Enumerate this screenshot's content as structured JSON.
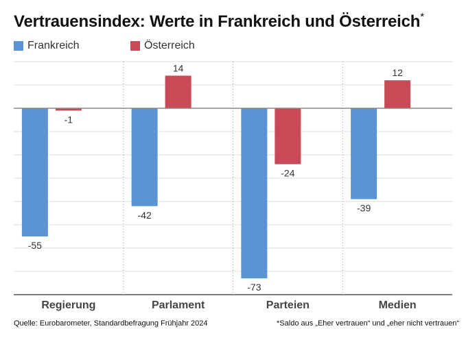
{
  "chart_data": {
    "type": "bar",
    "title": "Vertrauensindex: Werte in Frankreich und Österreich",
    "title_marker": "*",
    "categories": [
      "Regierung",
      "Parlament",
      "Parteien",
      "Medien"
    ],
    "series": [
      {
        "name": "Frankreich",
        "color": "#5b93d3",
        "values": [
          -55,
          -42,
          -73,
          -39
        ]
      },
      {
        "name": "Österreich",
        "color": "#c94a57",
        "values": [
          -1,
          14,
          -24,
          12
        ]
      }
    ],
    "data_labels": [
      [
        "-55",
        "-42",
        "-73",
        "-39"
      ],
      [
        "-1",
        "14",
        "-24",
        "12"
      ]
    ],
    "ylim": [
      -80,
      20
    ],
    "grid": true,
    "legend": "top-left"
  },
  "footer": {
    "source": "Quelle: Eurobarometer, Standardbefragung Frühjahr 2024",
    "note": "*Saldo aus „Eher vertrauen“ und „eher nicht vertrauen“"
  }
}
